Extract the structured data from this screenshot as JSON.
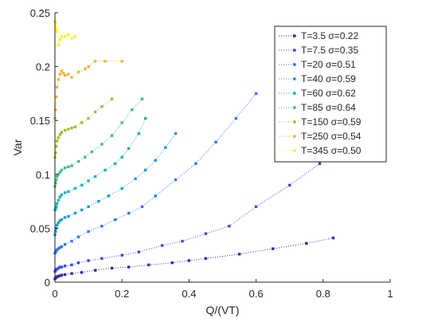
{
  "chart_data": {
    "type": "scatter",
    "title": "",
    "xlabel": "Q/(VT)",
    "ylabel": "Var",
    "xlim": [
      0,
      1
    ],
    "ylim": [
      0,
      0.25
    ],
    "xticks": [
      "0",
      "0.2",
      "0.4",
      "0.6",
      "0.8",
      "1"
    ],
    "yticks": [
      "0",
      "0.05",
      "0.1",
      "0.15",
      "0.2",
      "0.25"
    ],
    "grid": false,
    "legend_position": "top-right",
    "line_style": "dotted",
    "series": [
      {
        "name": "T=3.5 σ=0.22",
        "color": "#3d26a8",
        "x": [
          0,
          0.002,
          0.004,
          0.006,
          0.008,
          0.01,
          0.015,
          0.02,
          0.03,
          0.05,
          0.08,
          0.12,
          0.17,
          0.22,
          0.28,
          0.35,
          0.4,
          0.45,
          0.55,
          0.65,
          0.75,
          0.83
        ],
        "y": [
          0.003,
          0.004,
          0.0045,
          0.005,
          0.0052,
          0.0055,
          0.006,
          0.0065,
          0.007,
          0.008,
          0.009,
          0.011,
          0.013,
          0.014,
          0.016,
          0.018,
          0.02,
          0.022,
          0.026,
          0.031,
          0.036,
          0.041
        ]
      },
      {
        "name": "T=7.5 σ=0.35",
        "color": "#3949de",
        "x": [
          0,
          0.002,
          0.004,
          0.006,
          0.01,
          0.015,
          0.02,
          0.03,
          0.05,
          0.07,
          0.1,
          0.14,
          0.2,
          0.25,
          0.32,
          0.38,
          0.45,
          0.52,
          0.6,
          0.7,
          0.79
        ],
        "y": [
          0.01,
          0.011,
          0.012,
          0.012,
          0.013,
          0.014,
          0.014,
          0.015,
          0.016,
          0.018,
          0.02,
          0.022,
          0.025,
          0.028,
          0.034,
          0.038,
          0.045,
          0.052,
          0.07,
          0.09,
          0.11
        ]
      },
      {
        "name": "T=20 σ=0.51",
        "color": "#2c78f2",
        "x": [
          0,
          0.002,
          0.004,
          0.006,
          0.01,
          0.015,
          0.02,
          0.03,
          0.05,
          0.07,
          0.1,
          0.14,
          0.18,
          0.22,
          0.26,
          0.3,
          0.36,
          0.42,
          0.48,
          0.54,
          0.6
        ],
        "y": [
          0.027,
          0.028,
          0.029,
          0.03,
          0.031,
          0.032,
          0.033,
          0.035,
          0.038,
          0.042,
          0.047,
          0.052,
          0.058,
          0.064,
          0.07,
          0.08,
          0.095,
          0.11,
          0.13,
          0.152,
          0.175
        ]
      },
      {
        "name": "T=40 σ=0.59",
        "color": "#1a99d8",
        "x": [
          0,
          0.002,
          0.004,
          0.006,
          0.01,
          0.015,
          0.02,
          0.03,
          0.04,
          0.06,
          0.08,
          0.1,
          0.13,
          0.16,
          0.2,
          0.24,
          0.27,
          0.3,
          0.33,
          0.36
        ],
        "y": [
          0.044,
          0.047,
          0.05,
          0.053,
          0.055,
          0.057,
          0.058,
          0.06,
          0.061,
          0.064,
          0.067,
          0.07,
          0.075,
          0.08,
          0.087,
          0.096,
          0.104,
          0.113,
          0.125,
          0.138
        ]
      },
      {
        "name": "T=60 σ=0.62",
        "color": "#15b3b4",
        "x": [
          0,
          0.002,
          0.004,
          0.006,
          0.01,
          0.015,
          0.02,
          0.03,
          0.04,
          0.06,
          0.08,
          0.1,
          0.12,
          0.15,
          0.18,
          0.2,
          0.22,
          0.25,
          0.27
        ],
        "y": [
          0.067,
          0.068,
          0.07,
          0.073,
          0.076,
          0.079,
          0.081,
          0.083,
          0.084,
          0.087,
          0.09,
          0.094,
          0.098,
          0.104,
          0.11,
          0.116,
          0.124,
          0.138,
          0.152
        ]
      },
      {
        "name": "T=85 σ=0.64",
        "color": "#3fbf78",
        "x": [
          0,
          0.002,
          0.004,
          0.006,
          0.01,
          0.015,
          0.02,
          0.03,
          0.04,
          0.05,
          0.07,
          0.09,
          0.11,
          0.14,
          0.17,
          0.2,
          0.23,
          0.26
        ],
        "y": [
          0.089,
          0.092,
          0.095,
          0.098,
          0.1,
          0.102,
          0.104,
          0.106,
          0.107,
          0.108,
          0.112,
          0.116,
          0.121,
          0.128,
          0.136,
          0.148,
          0.16,
          0.17
        ]
      },
      {
        "name": "T=150 σ=0.59",
        "color": "#9fbd2b",
        "x": [
          0,
          0.002,
          0.004,
          0.006,
          0.01,
          0.015,
          0.02,
          0.03,
          0.04,
          0.05,
          0.06,
          0.08,
          0.1,
          0.12,
          0.14,
          0.17
        ],
        "y": [
          0.116,
          0.12,
          0.126,
          0.131,
          0.134,
          0.137,
          0.139,
          0.141,
          0.142,
          0.143,
          0.144,
          0.148,
          0.152,
          0.158,
          0.163,
          0.17
        ]
      },
      {
        "name": "T=250 σ=0.54",
        "color": "#f1b336",
        "x": [
          0,
          0.002,
          0.004,
          0.006,
          0.01,
          0.015,
          0.02,
          0.025,
          0.03,
          0.04,
          0.05,
          0.07,
          0.09,
          0.1,
          0.12,
          0.15,
          0.2
        ],
        "y": [
          0.152,
          0.16,
          0.172,
          0.181,
          0.188,
          0.193,
          0.196,
          0.194,
          0.192,
          0.193,
          0.19,
          0.195,
          0.198,
          0.2,
          0.205,
          0.205,
          0.205
        ]
      },
      {
        "name": "T=345 σ=0.50",
        "color": "#f9f411",
        "x": [
          0,
          0.002,
          0.004,
          0.006,
          0.01,
          0.015,
          0.02,
          0.03,
          0.04,
          0.05,
          0.06
        ],
        "y": [
          0.242,
          0.24,
          0.236,
          0.233,
          0.22,
          0.225,
          0.228,
          0.228,
          0.23,
          0.226,
          0.228
        ]
      }
    ]
  }
}
